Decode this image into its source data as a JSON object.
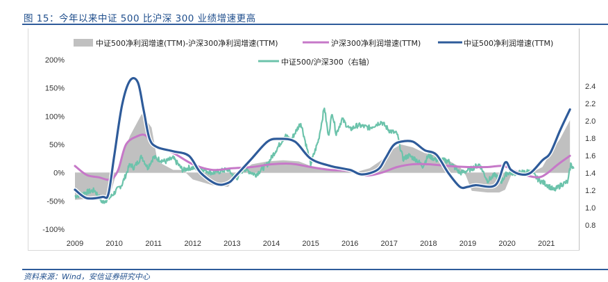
{
  "title": "图 15：今年以来中证 500 比沪深 300 业绩增速更高",
  "source": "资料来源：Wind，安信证券研究中心",
  "colors": {
    "spread_fill": "#c0c0c0",
    "hs300_growth": "#c678c8",
    "csi500_growth": "#2e5b9a",
    "ratio": "#6cc3ab",
    "accent": "#2e5b9a"
  },
  "chart_data": {
    "type": "line",
    "title": "",
    "xlabel": "",
    "ylabel": "",
    "y2label": "",
    "grid": false,
    "legend_position": "top",
    "x_ticks": [
      "2009",
      "2010",
      "2011",
      "2012",
      "2013",
      "2014",
      "2015",
      "2016",
      "2017",
      "2018",
      "2019",
      "2020",
      "2021"
    ],
    "xlim": [
      2009,
      2021.8
    ],
    "y_ticks": [
      "-100%",
      "-50%",
      "0%",
      "50%",
      "100%",
      "150%",
      "200%"
    ],
    "ylim": [
      -100,
      200
    ],
    "y2_ticks": [
      "0.8",
      "1.0",
      "1.2",
      "1.4",
      "1.6",
      "1.8",
      "2.0",
      "2.2",
      "2.4"
    ],
    "y2lim": [
      0.8,
      2.4
    ],
    "series": [
      {
        "name": "中证500净利润增速(TTM)-沪深300净利润增速(TTM)",
        "type": "area",
        "axis": "left",
        "unit": "%",
        "x": [
          2009.0,
          2009.6,
          2009.9,
          2010.1,
          2010.4,
          2010.7,
          2010.95,
          2011.1,
          2011.5,
          2011.75,
          2012.0,
          2012.5,
          2012.9,
          2013.1,
          2013.5,
          2013.9,
          2014.3,
          2014.7,
          2015.0,
          2015.5,
          2015.9,
          2016.2,
          2016.5,
          2016.8,
          2017.0,
          2017.3,
          2017.6,
          2017.9,
          2018.2,
          2018.5,
          2018.8,
          2018.95,
          2019.1,
          2019.5,
          2019.8,
          2019.95,
          2020.1,
          2020.4,
          2020.7,
          2020.9,
          2021.1,
          2021.35,
          2021.6
        ],
        "values": [
          -48,
          -45,
          -38,
          10,
          65,
          104,
          80,
          20,
          5,
          5,
          -12,
          -22,
          -25,
          -5,
          15,
          20,
          22,
          20,
          12,
          5,
          3,
          2,
          8,
          22,
          38,
          50,
          45,
          35,
          30,
          22,
          10,
          -5,
          -32,
          -35,
          -35,
          -30,
          -5,
          -2,
          3,
          10,
          35,
          60,
          93
        ]
      },
      {
        "name": "沪深300净利润增速(TTM)",
        "type": "line",
        "axis": "left",
        "unit": "%",
        "x": [
          2009.0,
          2009.3,
          2009.6,
          2009.9,
          2010.1,
          2010.3,
          2010.6,
          2010.8,
          2011.0,
          2011.5,
          2012.0,
          2012.5,
          2013.0,
          2013.5,
          2014.0,
          2014.5,
          2015.0,
          2015.5,
          2016.0,
          2016.4,
          2016.8,
          2017.2,
          2017.6,
          2018.0,
          2018.5,
          2019.0,
          2019.5,
          2019.9,
          2020.2,
          2020.5,
          2020.8,
          2021.0,
          2021.3,
          2021.6
        ],
        "values": [
          12,
          -4,
          -8,
          -12,
          5,
          50,
          65,
          66,
          50,
          35,
          15,
          5,
          8,
          10,
          15,
          16,
          10,
          5,
          3,
          -5,
          0,
          10,
          15,
          15,
          12,
          10,
          10,
          12,
          3,
          -5,
          -8,
          -2,
          15,
          30
        ]
      },
      {
        "name": "中证500净利润增速(TTM)",
        "type": "line",
        "axis": "left",
        "unit": "%",
        "x": [
          2009.0,
          2009.3,
          2009.7,
          2009.85,
          2010.0,
          2010.2,
          2010.4,
          2010.6,
          2010.75,
          2010.9,
          2011.1,
          2011.5,
          2011.9,
          2012.2,
          2012.6,
          2012.9,
          2013.1,
          2013.5,
          2013.9,
          2014.2,
          2014.6,
          2015.0,
          2015.5,
          2016.0,
          2016.3,
          2016.7,
          2016.9,
          2017.1,
          2017.3,
          2017.6,
          2017.9,
          2018.2,
          2018.5,
          2018.8,
          2019.0,
          2019.2,
          2019.7,
          2019.95,
          2020.1,
          2020.35,
          2020.6,
          2020.9,
          2021.1,
          2021.35,
          2021.6
        ],
        "values": [
          -30,
          -45,
          -43,
          -38,
          30,
          120,
          163,
          160,
          110,
          60,
          45,
          38,
          30,
          0,
          -20,
          -18,
          -5,
          25,
          55,
          60,
          55,
          25,
          12,
          5,
          -3,
          5,
          25,
          48,
          55,
          55,
          40,
          32,
          0,
          -25,
          -25,
          -22,
          -22,
          18,
          5,
          -3,
          0,
          22,
          35,
          75,
          112
        ]
      },
      {
        "name": "中证500/沪深300（右轴）",
        "type": "line",
        "axis": "right",
        "unit": "ratio",
        "x": [
          2009.0,
          2009.3,
          2009.5,
          2009.7,
          2009.9,
          2010.2,
          2010.4,
          2010.5,
          2010.7,
          2010.85,
          2011.0,
          2011.3,
          2011.5,
          2011.75,
          2011.9,
          2012.2,
          2012.5,
          2012.9,
          2013.1,
          2013.3,
          2013.6,
          2013.9,
          2014.1,
          2014.35,
          2014.5,
          2014.75,
          2015.0,
          2015.2,
          2015.35,
          2015.45,
          2015.55,
          2015.65,
          2015.8,
          2016.0,
          2016.2,
          2016.5,
          2016.8,
          2017.0,
          2017.2,
          2017.35,
          2017.5,
          2017.7,
          2017.85,
          2018.0,
          2018.2,
          2018.5,
          2018.8,
          2018.95,
          2019.1,
          2019.3,
          2019.5,
          2019.7,
          2019.85,
          2020.0,
          2020.3,
          2020.6,
          2020.8,
          2021.0,
          2021.2,
          2021.4,
          2021.55,
          2021.62,
          2021.7
        ],
        "values": [
          1.13,
          1.18,
          1.2,
          1.06,
          1.12,
          1.27,
          1.5,
          1.46,
          1.59,
          1.46,
          1.58,
          1.53,
          1.57,
          1.43,
          1.46,
          1.45,
          1.4,
          1.44,
          1.33,
          1.45,
          1.38,
          1.5,
          1.65,
          1.83,
          1.78,
          1.98,
          1.5,
          1.78,
          2.16,
          1.82,
          2.1,
          1.85,
          2.02,
          1.9,
          1.95,
          1.92,
          1.99,
          1.89,
          1.85,
          1.56,
          1.6,
          1.55,
          1.48,
          1.6,
          1.55,
          1.54,
          1.4,
          1.42,
          1.45,
          1.5,
          1.31,
          1.38,
          1.3,
          1.4,
          1.4,
          1.42,
          1.32,
          1.27,
          1.2,
          1.27,
          1.3,
          1.5,
          1.45
        ]
      }
    ]
  }
}
